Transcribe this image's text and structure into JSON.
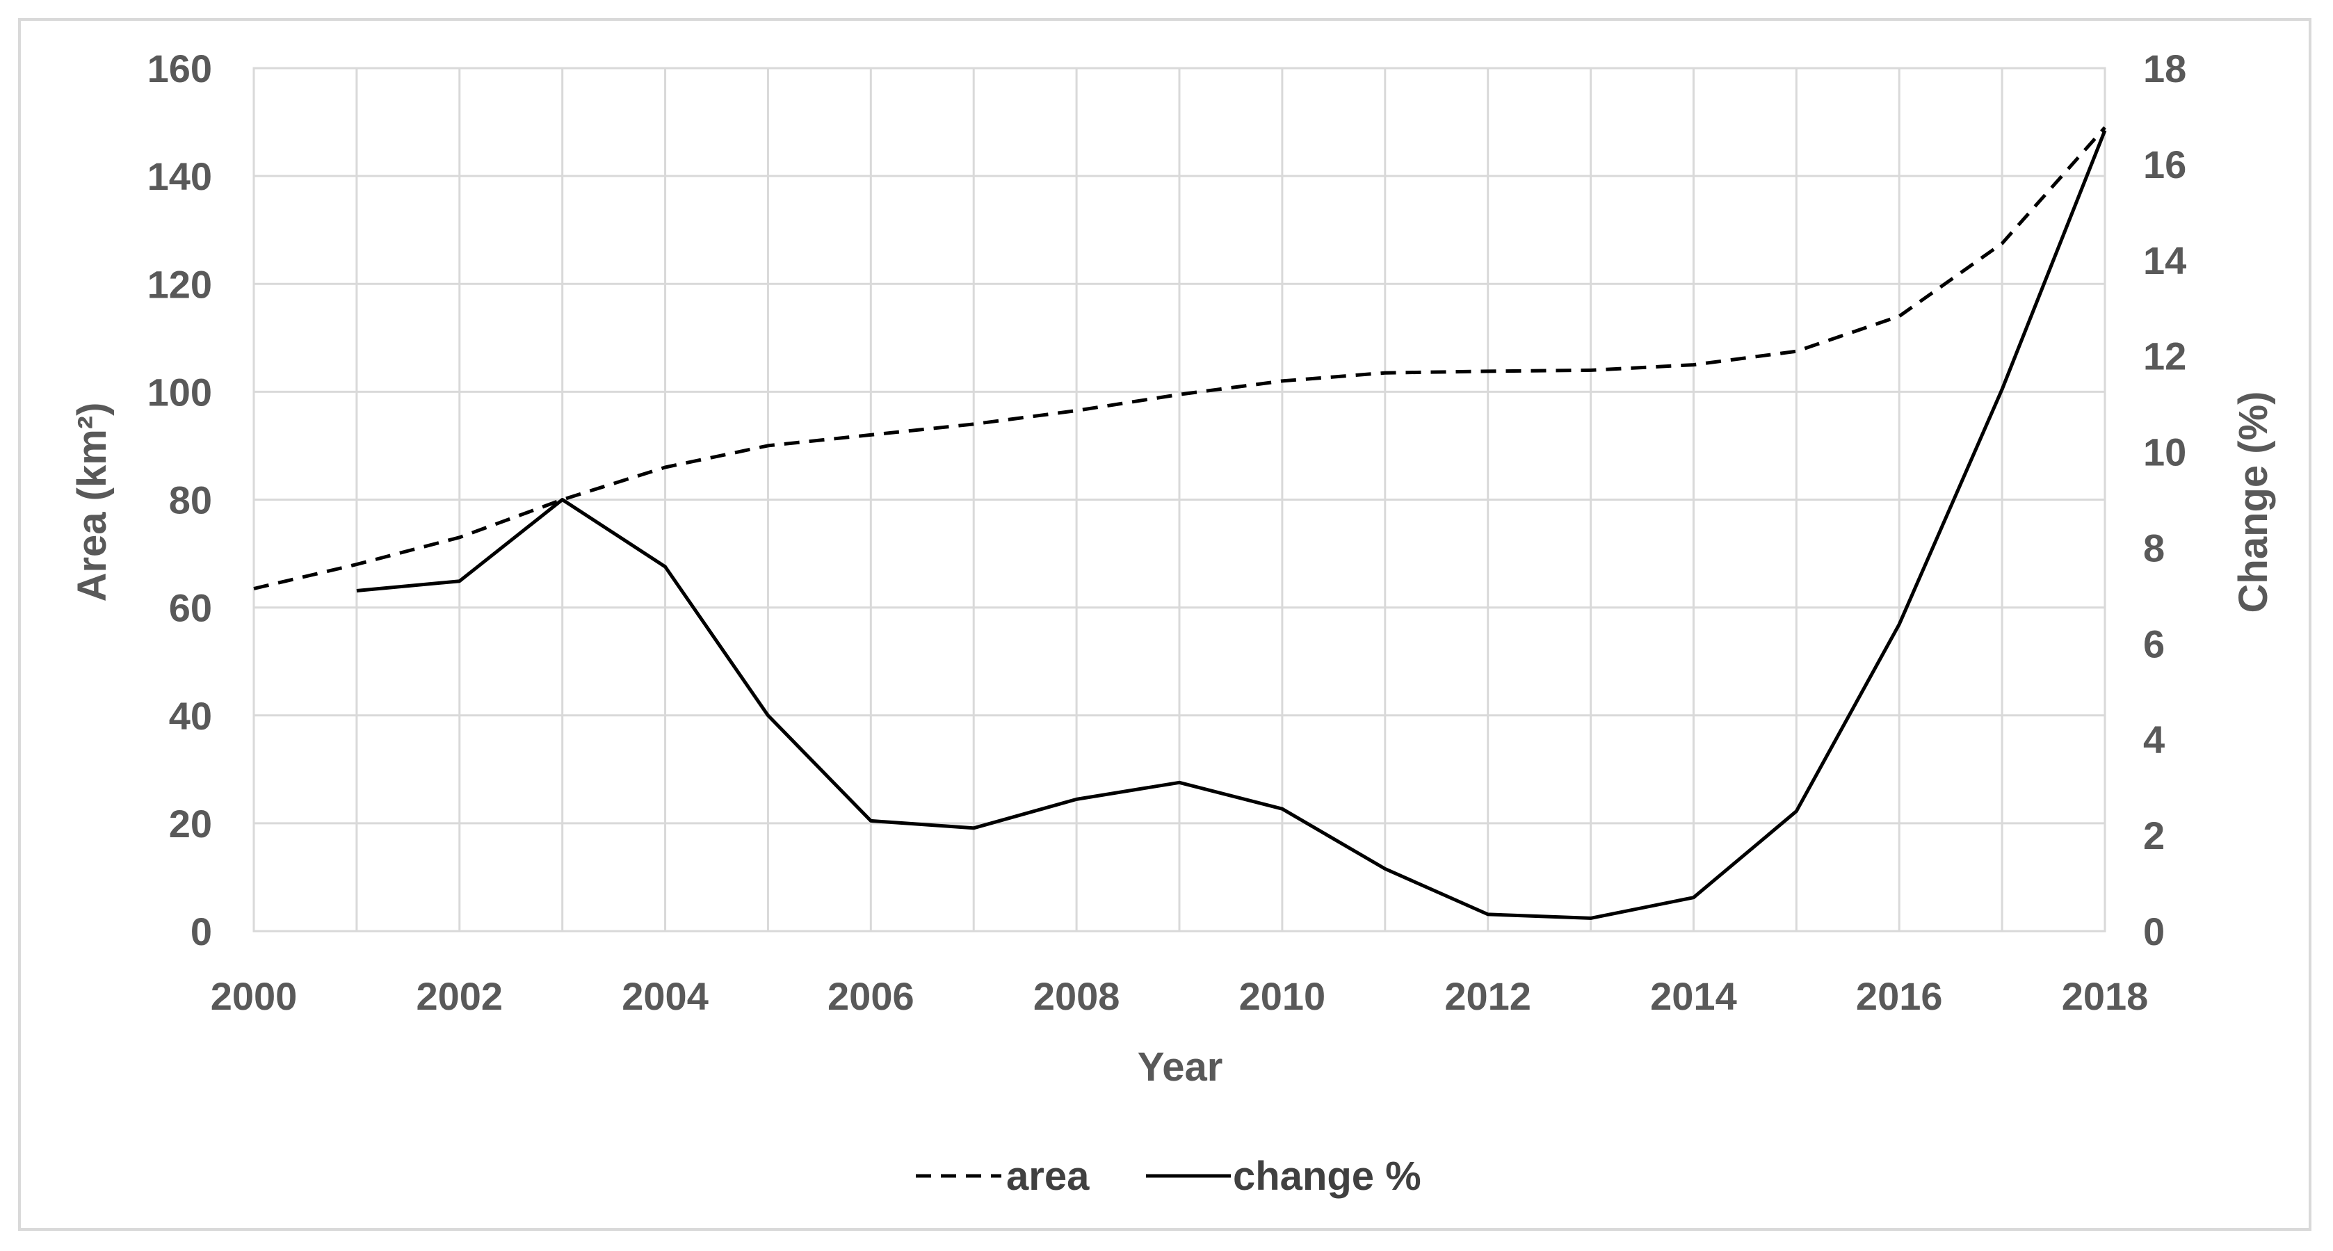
{
  "chart_data": {
    "type": "line",
    "title": "",
    "xlabel": "Year",
    "ylabel": "Area (km²)",
    "y2label": "Change (%)",
    "x": [
      2000,
      2001,
      2002,
      2003,
      2004,
      2005,
      2006,
      2007,
      2008,
      2009,
      2010,
      2011,
      2012,
      2013,
      2014,
      2015,
      2016,
      2017,
      2018
    ],
    "xticks": [
      "2000",
      "2002",
      "2004",
      "2006",
      "2008",
      "2010",
      "2012",
      "2014",
      "2016",
      "2018"
    ],
    "xlim": [
      2000,
      2018
    ],
    "ylim": [
      0,
      160
    ],
    "yticks": [
      "0",
      "20",
      "40",
      "60",
      "80",
      "100",
      "120",
      "140",
      "160"
    ],
    "y2lim": [
      0,
      18
    ],
    "y2ticks": [
      "0",
      "2",
      "4",
      "6",
      "8",
      "10",
      "12",
      "14",
      "16",
      "18"
    ],
    "grid": true,
    "legend_position": "bottom",
    "series": [
      {
        "name": "area",
        "axis": "left",
        "style": "dashed",
        "color": "#000000",
        "values": [
          63.5,
          68,
          73,
          80,
          86,
          90,
          92,
          94,
          96.5,
          99.5,
          102,
          103.5,
          103.8,
          104,
          105,
          107.5,
          114,
          127.5,
          149
        ]
      },
      {
        "name": "change %",
        "axis": "right",
        "style": "solid",
        "color": "#000000",
        "values": [
          null,
          7.1,
          7.3,
          9.0,
          7.6,
          4.5,
          2.3,
          2.15,
          2.75,
          3.1,
          2.55,
          1.3,
          0.35,
          0.27,
          0.7,
          2.5,
          6.4,
          11.3,
          16.7
        ]
      }
    ]
  }
}
